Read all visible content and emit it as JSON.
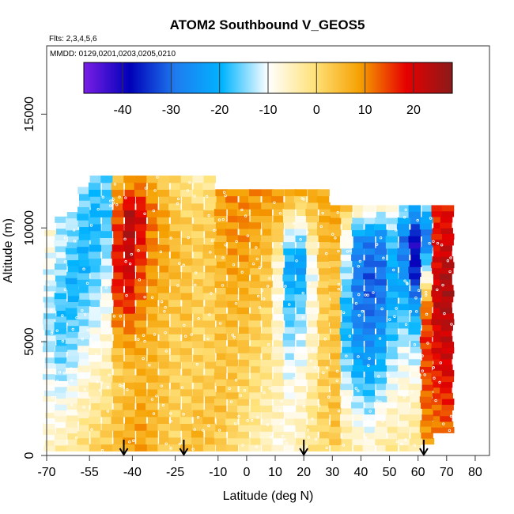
{
  "chart_data": {
    "type": "heatmap",
    "title": "ATOM2 Southbound V_GEOS5",
    "subtitle_flights": "Flts: 2,3,4,5,6",
    "subtitle_dates": "MMDD: 0129,0201,0203,0205,0210",
    "xlabel": "Latitude (deg N)",
    "ylabel": "Altitude (m)",
    "xlim": [
      -70,
      85
    ],
    "ylim": [
      0,
      18000
    ],
    "x_tick_labels": [
      "-70",
      "-55",
      "-40",
      "-25",
      "-10",
      "0",
      "10",
      "20",
      "30",
      "40",
      "50",
      "60",
      "70",
      "80"
    ],
    "x_tick_values": [
      -70,
      -55,
      -40,
      -25,
      -10,
      0,
      10,
      20,
      30,
      40,
      50,
      60,
      70,
      80
    ],
    "y_tick_labels": [
      "0",
      "5000",
      "10000",
      "15000"
    ],
    "y_tick_values": [
      0,
      5000,
      10000,
      15000
    ],
    "colorbar": {
      "range": [
        -48,
        28
      ],
      "tick_labels": [
        "-40",
        "-30",
        "-20",
        "-10",
        "0",
        "10",
        "20"
      ],
      "tick_values": [
        -40,
        -30,
        -20,
        -10,
        0,
        10,
        20
      ],
      "colors": [
        "#7a1fe6",
        "#0000b8",
        "#1e7cf0",
        "#00b4ff",
        "#ffffff",
        "#ffe27a",
        "#f5a000",
        "#e60000",
        "#8b1a1a"
      ]
    },
    "arrow_latitudes": [
      -43,
      -22,
      20,
      62
    ],
    "columns": [
      {
        "lat": -69,
        "top": 9900,
        "bottom": 200,
        "v": [
          -6,
          -8,
          -10,
          -12,
          -14,
          -12,
          -10,
          -8
        ]
      },
      {
        "lat": -65,
        "top": 10500,
        "bottom": 200,
        "v": [
          -4,
          -8,
          -12,
          -16,
          -18,
          -16,
          -12,
          -14
        ]
      },
      {
        "lat": -61,
        "top": 10700,
        "bottom": 200,
        "v": [
          -2,
          -6,
          -10,
          -14,
          -18,
          -20,
          -16,
          -12
        ]
      },
      {
        "lat": -57,
        "top": 11800,
        "bottom": 200,
        "v": [
          0,
          -4,
          -8,
          -12,
          -16,
          -20,
          -18,
          -14
        ]
      },
      {
        "lat": -53,
        "top": 12300,
        "bottom": 200,
        "v": [
          2,
          -2,
          -6,
          -10,
          -14,
          -18,
          -20,
          -16
        ]
      },
      {
        "lat": -49,
        "top": 12300,
        "bottom": 200,
        "v": [
          4,
          0,
          -4,
          -8,
          -10,
          -14,
          -18,
          -16
        ]
      },
      {
        "lat": -45,
        "top": 12300,
        "bottom": 200,
        "v": [
          6,
          4,
          2,
          8,
          16,
          18,
          14,
          4
        ]
      },
      {
        "lat": -41,
        "top": 12300,
        "bottom": 200,
        "v": [
          8,
          6,
          4,
          10,
          18,
          22,
          24,
          6
        ]
      },
      {
        "lat": -37,
        "top": 12300,
        "bottom": 200,
        "v": [
          8,
          8,
          6,
          8,
          12,
          16,
          20,
          8
        ]
      },
      {
        "lat": -33,
        "top": 12300,
        "bottom": 200,
        "v": [
          6,
          6,
          6,
          6,
          8,
          10,
          12,
          6
        ]
      },
      {
        "lat": -29,
        "top": 12300,
        "bottom": 200,
        "v": [
          4,
          4,
          4,
          4,
          6,
          8,
          8,
          2
        ]
      },
      {
        "lat": -25,
        "top": 12300,
        "bottom": 200,
        "v": [
          2,
          2,
          2,
          2,
          4,
          6,
          4,
          0
        ]
      },
      {
        "lat": -21,
        "top": 12300,
        "bottom": 200,
        "v": [
          4,
          2,
          2,
          4,
          4,
          4,
          2,
          -2
        ]
      },
      {
        "lat": -17,
        "top": 12300,
        "bottom": 200,
        "v": [
          6,
          4,
          2,
          2,
          2,
          2,
          2,
          -4
        ]
      },
      {
        "lat": -13,
        "top": 12300,
        "bottom": 200,
        "v": [
          4,
          4,
          2,
          2,
          2,
          4,
          2,
          -2
        ]
      },
      {
        "lat": -9,
        "top": 11700,
        "bottom": 200,
        "v": [
          2,
          4,
          4,
          4,
          4,
          6,
          8,
          8
        ]
      },
      {
        "lat": -5,
        "top": 11700,
        "bottom": 200,
        "v": [
          0,
          2,
          4,
          4,
          6,
          8,
          10,
          10
        ]
      },
      {
        "lat": -1,
        "top": 11700,
        "bottom": 200,
        "v": [
          -2,
          0,
          2,
          4,
          6,
          8,
          10,
          10
        ]
      },
      {
        "lat": 3,
        "top": 11700,
        "bottom": 200,
        "v": [
          -4,
          -2,
          0,
          2,
          4,
          6,
          8,
          10
        ]
      },
      {
        "lat": 7,
        "top": 11700,
        "bottom": 200,
        "v": [
          -6,
          -4,
          -2,
          0,
          2,
          4,
          6,
          10
        ]
      },
      {
        "lat": 11,
        "top": 11700,
        "bottom": 200,
        "v": [
          -8,
          -6,
          -4,
          -6,
          -8,
          -6,
          4,
          10
        ]
      },
      {
        "lat": 15,
        "top": 11700,
        "bottom": 200,
        "v": [
          -6,
          -8,
          -10,
          -14,
          -18,
          -22,
          -8,
          10
        ]
      },
      {
        "lat": 19,
        "top": 11700,
        "bottom": 200,
        "v": [
          -4,
          -6,
          -8,
          -12,
          -16,
          -24,
          -10,
          8
        ]
      },
      {
        "lat": 23,
        "top": 11700,
        "bottom": 200,
        "v": [
          -2,
          -2,
          -4,
          -6,
          -8,
          -10,
          0,
          8
        ]
      },
      {
        "lat": 27,
        "top": 11700,
        "bottom": 200,
        "v": [
          0,
          2,
          2,
          2,
          2,
          4,
          6,
          8
        ]
      },
      {
        "lat": 31,
        "top": 11000,
        "bottom": 200,
        "v": [
          2,
          4,
          4,
          4,
          4,
          4,
          6,
          8
        ]
      },
      {
        "lat": 35,
        "top": 11000,
        "bottom": 200,
        "v": [
          -2,
          -6,
          -12,
          -18,
          -20,
          -14,
          -10,
          4
        ]
      },
      {
        "lat": 39,
        "top": 11000,
        "bottom": 200,
        "v": [
          -4,
          -10,
          -18,
          -24,
          -28,
          -28,
          -26,
          -2
        ]
      },
      {
        "lat": 43,
        "top": 11000,
        "bottom": 200,
        "v": [
          -6,
          -12,
          -20,
          -26,
          -30,
          -32,
          -28,
          -4
        ]
      },
      {
        "lat": 47,
        "top": 11000,
        "bottom": 200,
        "v": [
          -4,
          -8,
          -16,
          -22,
          -28,
          -30,
          -28,
          -6
        ]
      },
      {
        "lat": 51,
        "top": 11000,
        "bottom": 200,
        "v": [
          -2,
          -6,
          -10,
          -16,
          -20,
          -22,
          -18,
          -8
        ]
      },
      {
        "lat": 55,
        "top": 11000,
        "bottom": 200,
        "v": [
          -4,
          -6,
          -8,
          -12,
          -18,
          -24,
          -30,
          -12
        ]
      },
      {
        "lat": 59,
        "top": 11000,
        "bottom": 200,
        "v": [
          -2,
          -4,
          -8,
          -14,
          -22,
          -36,
          -40,
          -20
        ]
      },
      {
        "lat": 63,
        "top": 11000,
        "bottom": 500,
        "v": [
          8,
          12,
          14,
          16,
          12,
          -10,
          -30,
          -16
        ]
      },
      {
        "lat": 67,
        "top": 11000,
        "bottom": 1000,
        "v": [
          10,
          14,
          18,
          20,
          22,
          20,
          18,
          16
        ]
      },
      {
        "lat": 70,
        "top": 11000,
        "bottom": 1000,
        "v": [
          12,
          16,
          20,
          22,
          24,
          24,
          20,
          18
        ]
      }
    ]
  }
}
